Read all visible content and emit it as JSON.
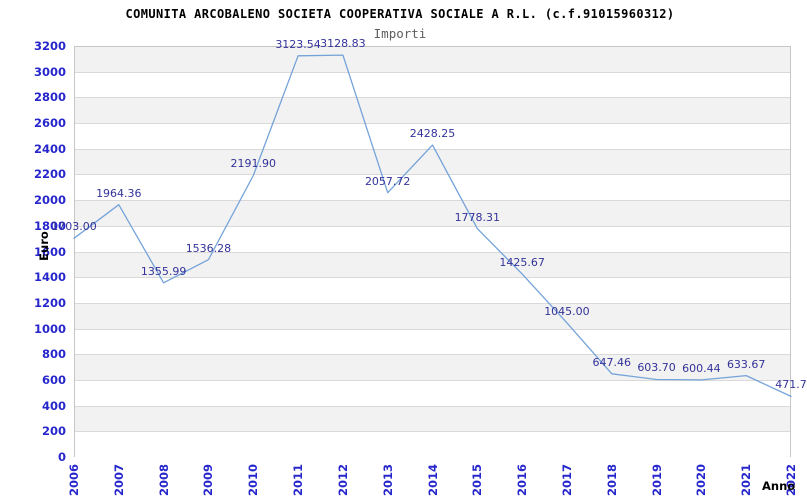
{
  "header": {
    "title": "COMUNITA ARCOBALENO SOCIETA COOPERATIVA SOCIALE A R.L. (c.f.91015960312)",
    "subtitle": "Importi"
  },
  "chart_data": {
    "type": "line",
    "title": "COMUNITA ARCOBALENO SOCIETA COOPERATIVA SOCIALE A R.L. (c.f.91015960312)",
    "subtitle": "Importi",
    "xlabel": "Anno",
    "ylabel": "Euro",
    "x": [
      2006,
      2007,
      2008,
      2009,
      2010,
      2011,
      2012,
      2013,
      2014,
      2015,
      2016,
      2017,
      2018,
      2019,
      2020,
      2021,
      2022
    ],
    "series": [
      {
        "name": "Importi",
        "values": [
          1703.0,
          1964.36,
          1355.99,
          1536.28,
          2191.9,
          3123.54,
          3128.83,
          2057.72,
          2428.25,
          1778.31,
          1425.67,
          1045.0,
          647.46,
          603.7,
          600.44,
          633.67,
          471.7
        ],
        "point_labels": [
          "1703.00",
          "1964.36",
          "1355.99",
          "1536.28",
          "2191.90",
          "3123.54",
          "3128.83",
          "2057.72",
          "2428.25",
          "1778.31",
          "1425.67",
          "1045.00",
          "647.46",
          "603.70",
          "600.44",
          "633.67",
          "471.7"
        ]
      }
    ],
    "ylim": [
      0,
      3200
    ],
    "ytick_step": 200,
    "grid": true,
    "banded_background": true,
    "legend": "none",
    "colors": {
      "line": "#74a3d9",
      "tick_label": "#2626cc",
      "point_label": "#333399",
      "band": "#f2f2f2",
      "gridline": "#d9d9d9",
      "plot_border": "#c6c6c6",
      "title": "#000000",
      "subtitle": "#5f5f5f"
    }
  }
}
